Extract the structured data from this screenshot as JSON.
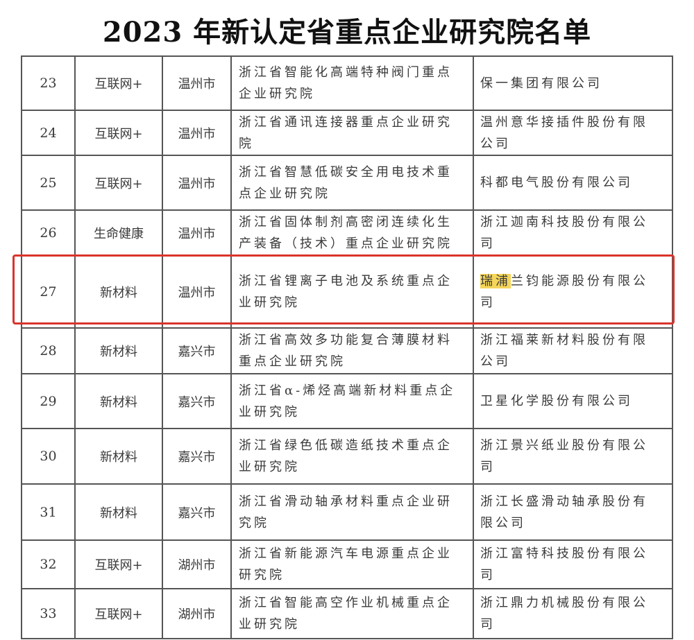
{
  "title": "2023 年新认定省重点企业研究院名单",
  "highlight_color": "#f5d55a",
  "box_color": "#d9332c",
  "rows": [
    {
      "no": "23",
      "industry": "互联网+",
      "city": "温州市",
      "institute": "浙江省智能化高端特种阀门重点企业研究院",
      "company": "保一集团有限公司"
    },
    {
      "no": "24",
      "industry": "互联网+",
      "city": "温州市",
      "institute": "浙江省通讯连接器重点企业研究院",
      "company": "温州意华接插件股份有限公司"
    },
    {
      "no": "25",
      "industry": "互联网+",
      "city": "温州市",
      "institute": "浙江省智慧低碳安全用电技术重点企业研究院",
      "company": "科都电气股份有限公司"
    },
    {
      "no": "26",
      "industry": "生命健康",
      "city": "温州市",
      "institute": "浙江省固体制剂高密闭连续化生产装备（技术）重点企业研究院",
      "company": "浙江迦南科技股份有限公司"
    },
    {
      "no": "27",
      "industry": "新材料",
      "city": "温州市",
      "institute": "浙江省锂离子电池及系统重点企业研究院",
      "company_highlight": "瑞浦",
      "company": "兰钧能源股份有限公司"
    },
    {
      "no": "28",
      "industry": "新材料",
      "city": "嘉兴市",
      "institute": "浙江省高效多功能复合薄膜材料重点企业研究院",
      "company": "浙江福莱新材料股份有限公司"
    },
    {
      "no": "29",
      "industry": "新材料",
      "city": "嘉兴市",
      "institute": "浙江省α-烯烃高端新材料重点企业研究院",
      "company": "卫星化学股份有限公司"
    },
    {
      "no": "30",
      "industry": "新材料",
      "city": "嘉兴市",
      "institute": "浙江省绿色低碳造纸技术重点企业研究院",
      "company": "浙江景兴纸业股份有限公司"
    },
    {
      "no": "31",
      "industry": "新材料",
      "city": "嘉兴市",
      "institute": "浙江省滑动轴承材料重点企业研究院",
      "company": "浙江长盛滑动轴承股份有限公司"
    },
    {
      "no": "32",
      "industry": "互联网+",
      "city": "湖州市",
      "institute": "浙江省新能源汽车电源重点企业研究院",
      "company": "浙江富特科技股份有限公司"
    },
    {
      "no": "33",
      "industry": "互联网+",
      "city": "湖州市",
      "institute": "浙江省智能高空作业机械重点企业研究院",
      "company": "浙江鼎力机械股份有限公司"
    }
  ]
}
